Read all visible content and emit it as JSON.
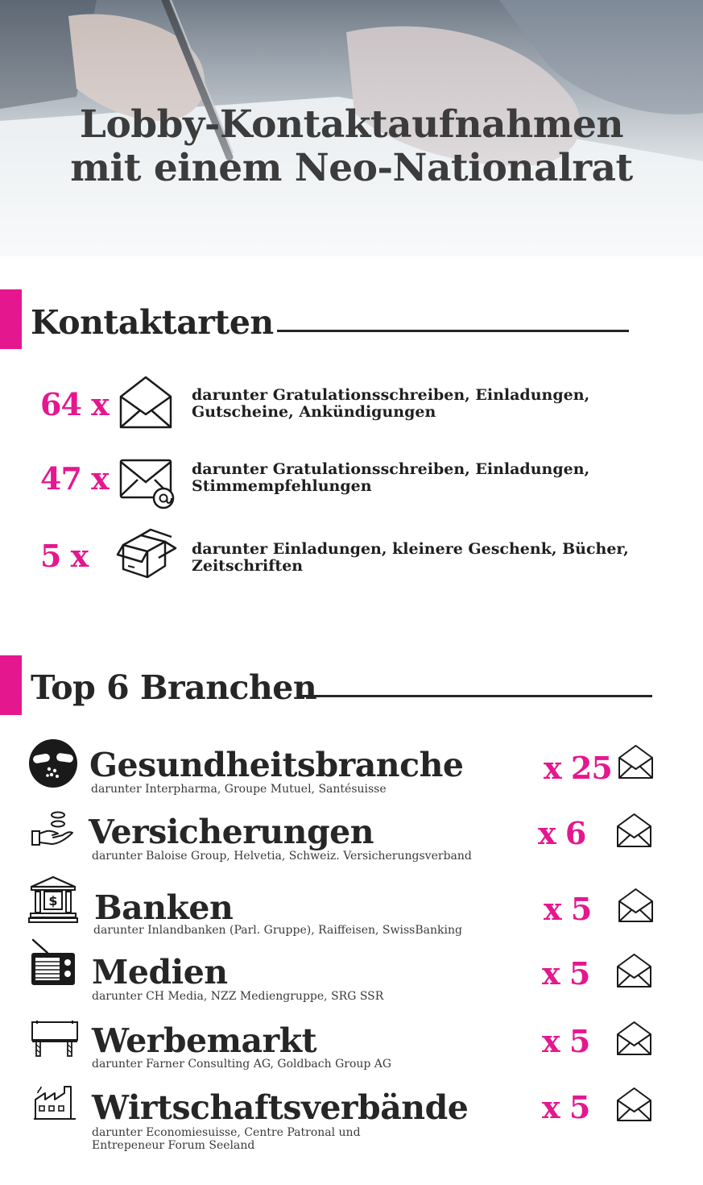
{
  "header": {
    "title_line1": "Lobby-Kontaktaufnahmen",
    "title_line2": "mit einem Neo-Nationalrat"
  },
  "contact_types": {
    "title": "Kontaktarten",
    "items": [
      {
        "count": "64 x",
        "icon": "envelope-icon",
        "description": "darunter Gratulationsschreiben, Einladungen, Gutscheine, Ankündigungen"
      },
      {
        "count": "47 x",
        "icon": "email-icon",
        "description": "darunter Gratulationsschreiben, Einladungen, Stimmempfehlungen"
      },
      {
        "count": "5 x",
        "icon": "package-icon",
        "description": "darunter Einladungen, kleinere Geschenk, Bücher, Zeitschriften"
      }
    ]
  },
  "branches": {
    "title": "Top 6 Branchen",
    "items": [
      {
        "name": "Gesundheitsbranche",
        "detail": "darunter Interpharma, Groupe Mutuel, Santésuisse",
        "count": "x 25",
        "icon": "pills-icon"
      },
      {
        "name": "Versicherungen",
        "detail": "darunter Baloise Group, Helvetia, Schweiz. Versicherungsverband",
        "count": "x 6",
        "icon": "hand-coins-icon"
      },
      {
        "name": "Banken",
        "detail": "darunter Inlandbanken (Parl. Gruppe), Raiffeisen, SwissBanking",
        "count": "x 5",
        "icon": "bank-icon"
      },
      {
        "name": "Medien",
        "detail": "darunter CH Media, NZZ Mediengruppe, SRG SSR",
        "count": "x 5",
        "icon": "radio-icon"
      },
      {
        "name": "Werbemarkt",
        "detail": "darunter Farner Consulting AG, Goldbach Group AG",
        "count": "x 5",
        "icon": "billboard-icon"
      },
      {
        "name": "Wirtschaftsverbände",
        "detail_line1": "darunter Economiesuisse, Centre Patronal und",
        "detail_line2": "Entrepeneur Forum Seeland",
        "count": "x 5",
        "icon": "factory-icon"
      }
    ]
  },
  "colors": {
    "accent": "#e5178f",
    "text": "#262626"
  }
}
